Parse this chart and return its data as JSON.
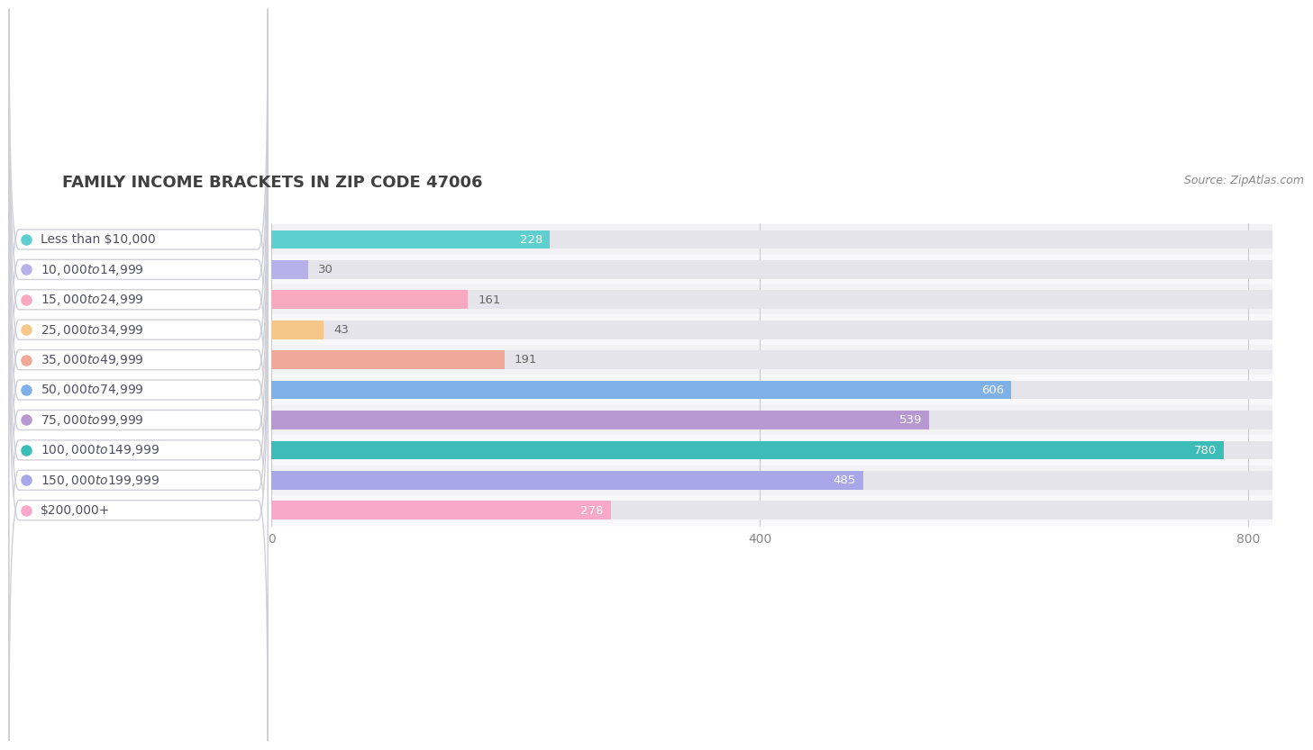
{
  "title": "FAMILY INCOME BRACKETS IN ZIP CODE 47006",
  "source": "Source: ZipAtlas.com",
  "categories": [
    "Less than $10,000",
    "$10,000 to $14,999",
    "$15,000 to $24,999",
    "$25,000 to $34,999",
    "$35,000 to $49,999",
    "$50,000 to $74,999",
    "$75,000 to $99,999",
    "$100,000 to $149,999",
    "$150,000 to $199,999",
    "$200,000+"
  ],
  "values": [
    228,
    30,
    161,
    43,
    191,
    606,
    539,
    780,
    485,
    278
  ],
  "bar_colors": [
    "#5ecfcf",
    "#b8b0e8",
    "#f8a8c0",
    "#f5c88a",
    "#f0a898",
    "#80b0e8",
    "#b898d0",
    "#3dbdb8",
    "#a8a8e8",
    "#f8a8c8"
  ],
  "xlim": [
    0,
    820
  ],
  "xticks": [
    0,
    400,
    800
  ],
  "title_fontsize": 13,
  "label_fontsize": 10,
  "value_fontsize": 9.5,
  "inside_label_threshold": 200
}
